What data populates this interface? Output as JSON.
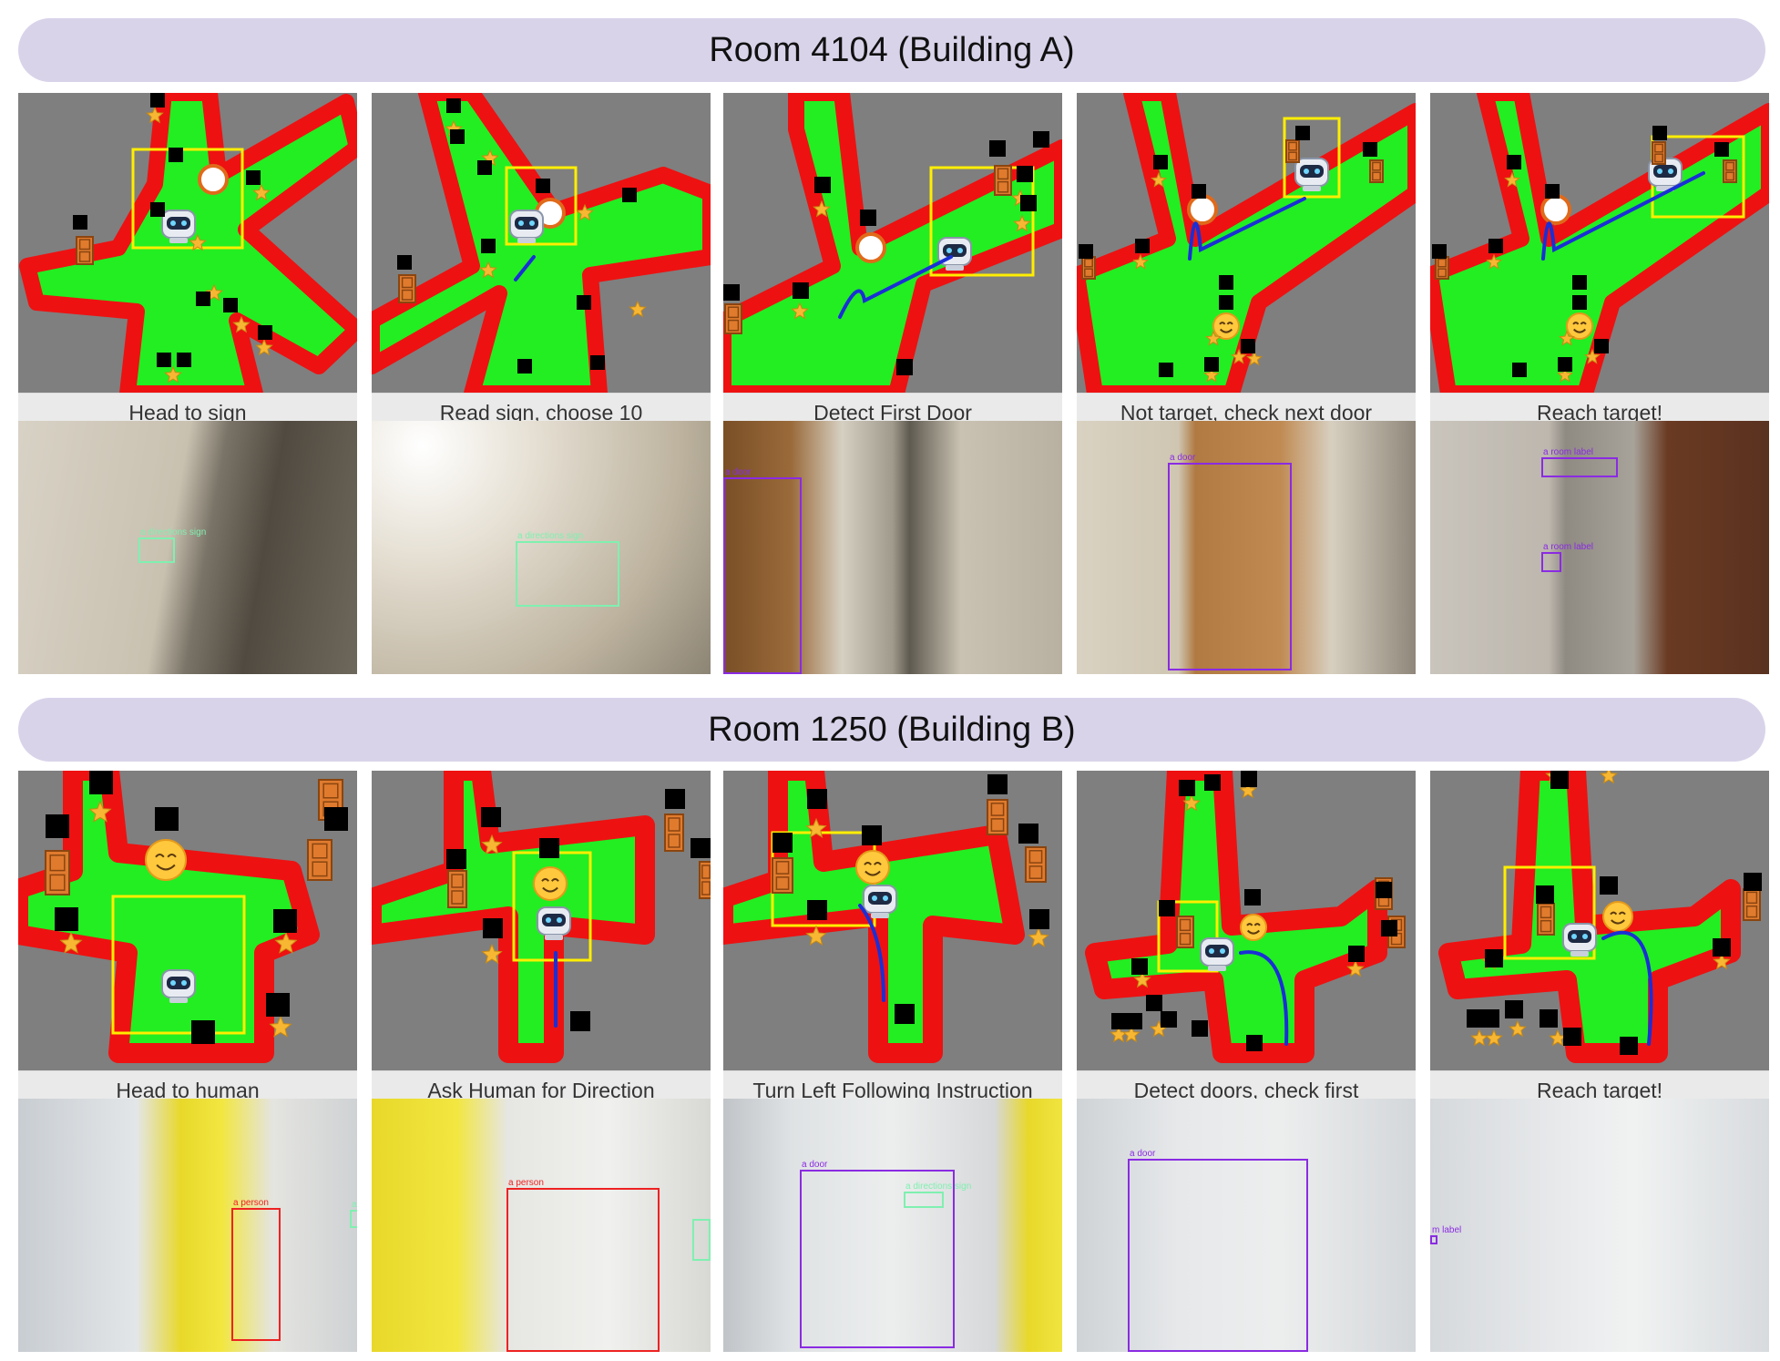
{
  "sections": [
    {
      "title": "Room 4104 (Building A)",
      "steps": [
        {
          "caption": "Head to sign"
        },
        {
          "caption": "Read sign, choose 10"
        },
        {
          "caption": "Detect First Door"
        },
        {
          "caption": "Not target, check next door"
        },
        {
          "caption": "Reach target!"
        }
      ],
      "photos": [
        {
          "detections": [
            "a directions sign"
          ]
        },
        {
          "detections": [
            "a directions sign"
          ]
        },
        {
          "detections": [
            "a door"
          ]
        },
        {
          "detections": [
            "a door"
          ]
        },
        {
          "detections": [
            "a room label",
            "a room label"
          ]
        }
      ]
    },
    {
      "title": "Room 1250 (Building B)",
      "steps": [
        {
          "caption": "Head to human"
        },
        {
          "caption": "Ask Human for Direction"
        },
        {
          "caption": "Turn Left Following Instruction"
        },
        {
          "caption": "Detect doors, check first"
        },
        {
          "caption": "Reach target!"
        }
      ],
      "photos": [
        {
          "detections": [
            "a person",
            "a directions sign"
          ]
        },
        {
          "detections": [
            "a person"
          ]
        },
        {
          "detections": [
            "a door",
            "a directions sign"
          ]
        },
        {
          "detections": [
            "a door"
          ]
        },
        {
          "detections": [
            "m label"
          ]
        }
      ]
    }
  ],
  "colors": {
    "header_bg": "#d9d3ea",
    "free_space": "#22ee22",
    "obstacle": "#ee1111",
    "unknown": "#7f7f7f",
    "highlight": "#ffee00",
    "path": "#1a2fd6",
    "door_box": "#8a2be2",
    "sign_box": "#7ff0b0",
    "person_box": "#ee2222"
  },
  "icons": [
    "robot-icon",
    "compass-sign-icon",
    "human-emoji-icon",
    "door-icon",
    "star-icon"
  ]
}
